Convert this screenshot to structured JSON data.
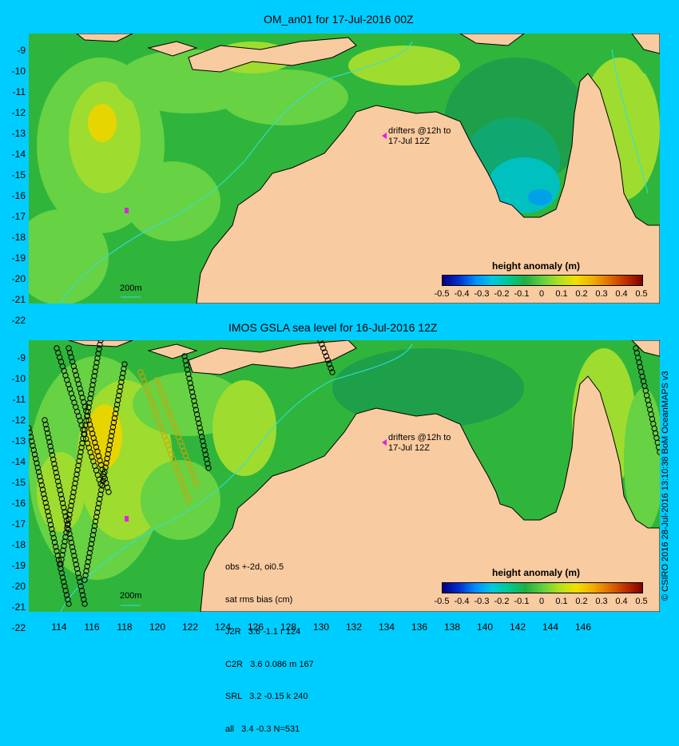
{
  "panels": [
    {
      "title": "OM_an01 for 17-Jul-2016 00Z",
      "drifter_note": [
        "drifters @12h to",
        "17-Jul 12Z"
      ],
      "isobath_label": "200m"
    },
    {
      "title": "IMOS GSLA sea level  for 16-Jul-2016 12Z",
      "drifter_note": [
        "drifters @12h to",
        "17-Jul 12Z"
      ],
      "isobath_label": "200m",
      "stats": [
        "obs +-2d, oi0.5",
        "sat rms bias (cm)",
        "J2R   3.6 -1.1 r 124",
        "C2R   3.6 0.086 m 167",
        "SRL   3.2 -0.15 k 240",
        "all   3.4 -0.3 N=531"
      ]
    }
  ],
  "colorbar": {
    "title": "height anomaly (m)",
    "ticks": [
      "-0.5",
      "-0.4",
      "-0.3",
      "-0.2",
      "-0.1",
      "0",
      "0.1",
      "0.2",
      "0.3",
      "0.4",
      "0.5"
    ],
    "colors": [
      "#000080",
      "#0030d0",
      "#0090ff",
      "#00c8e0",
      "#00c890",
      "#20b040",
      "#60d040",
      "#b0e020",
      "#f0e000",
      "#f0b000",
      "#e07000",
      "#c03000",
      "#800000"
    ]
  },
  "y_axis_labels": [
    "-9",
    "-10",
    "-11",
    "-12",
    "-13",
    "-14",
    "-15",
    "-16",
    "-17",
    "-18",
    "-19",
    "-20",
    "-21",
    "-22"
  ],
  "x_axis_labels": [
    "114",
    "116",
    "118",
    "120",
    "122",
    "124",
    "126",
    "128",
    "130",
    "132",
    "134",
    "136",
    "138",
    "140",
    "142",
    "144",
    "146"
  ],
  "copyright": "© CSIRO 2016  28-Jul-2016 13:10:38 BoM OceanMAPS v3",
  "colors": {
    "background": "#00cdff",
    "land": "#f9cba0",
    "sea_base": "#2fb53b"
  }
}
